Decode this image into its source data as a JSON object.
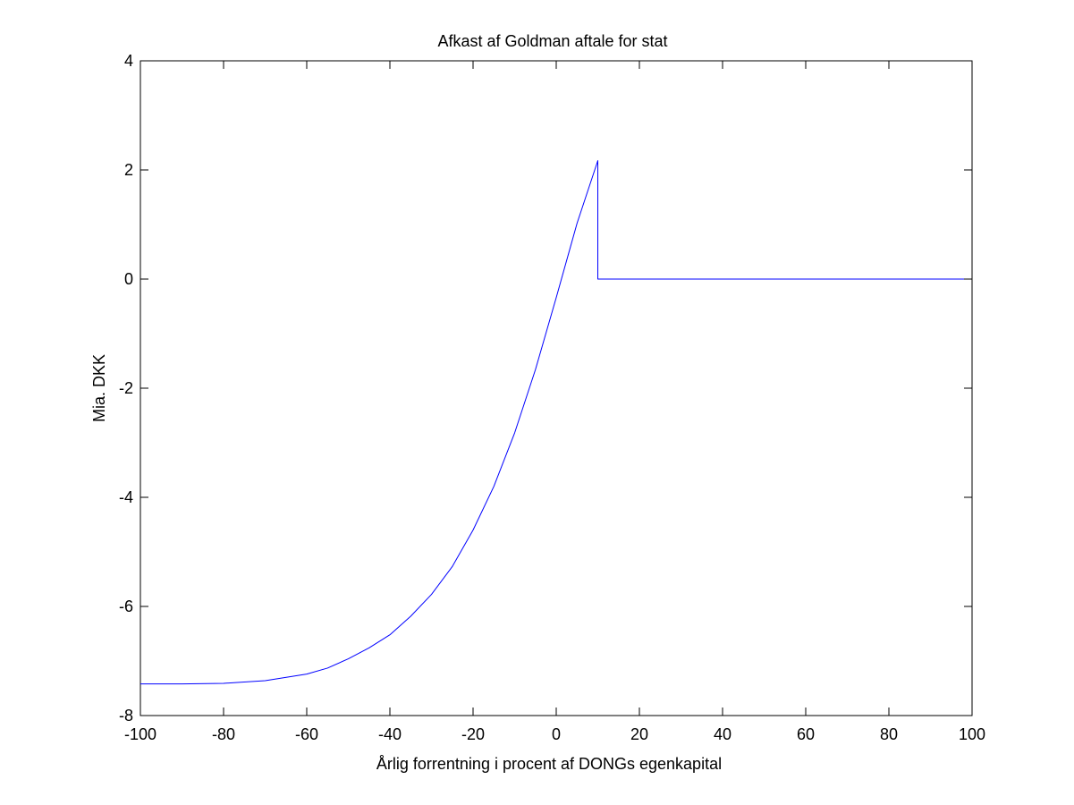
{
  "chart_data": {
    "type": "line",
    "title": "Afkast af Goldman aftale for stat",
    "xlabel": "Årlig forrentning i procent af DONGs egenkapital",
    "ylabel": "Mia. DKK",
    "xlim": [
      -100,
      100
    ],
    "ylim": [
      -8,
      4
    ],
    "xticks": [
      "-100",
      "-80",
      "-60",
      "-40",
      "-20",
      "0",
      "20",
      "40",
      "60",
      "80",
      "100"
    ],
    "yticks": [
      "4",
      "2",
      "0",
      "-2",
      "-4",
      "-6",
      "-8"
    ],
    "grid": false,
    "legend": "none",
    "series": [
      {
        "color": "#0000ff",
        "x": [
          -100,
          -90,
          -80,
          -70,
          -60,
          -55,
          -50,
          -45,
          -40,
          -35,
          -30,
          -25,
          -20,
          -15,
          -10,
          -5,
          0,
          5,
          10,
          10,
          20,
          40,
          60,
          80,
          100
        ],
        "y": [
          -7.42,
          -7.42,
          -7.41,
          -7.36,
          -7.24,
          -7.13,
          -6.96,
          -6.76,
          -6.52,
          -6.18,
          -5.78,
          -5.27,
          -4.6,
          -3.8,
          -2.82,
          -1.66,
          -0.34,
          1.02,
          2.17,
          0.0,
          0.0,
          0.0,
          0.0,
          0.0,
          0.0
        ]
      }
    ]
  }
}
